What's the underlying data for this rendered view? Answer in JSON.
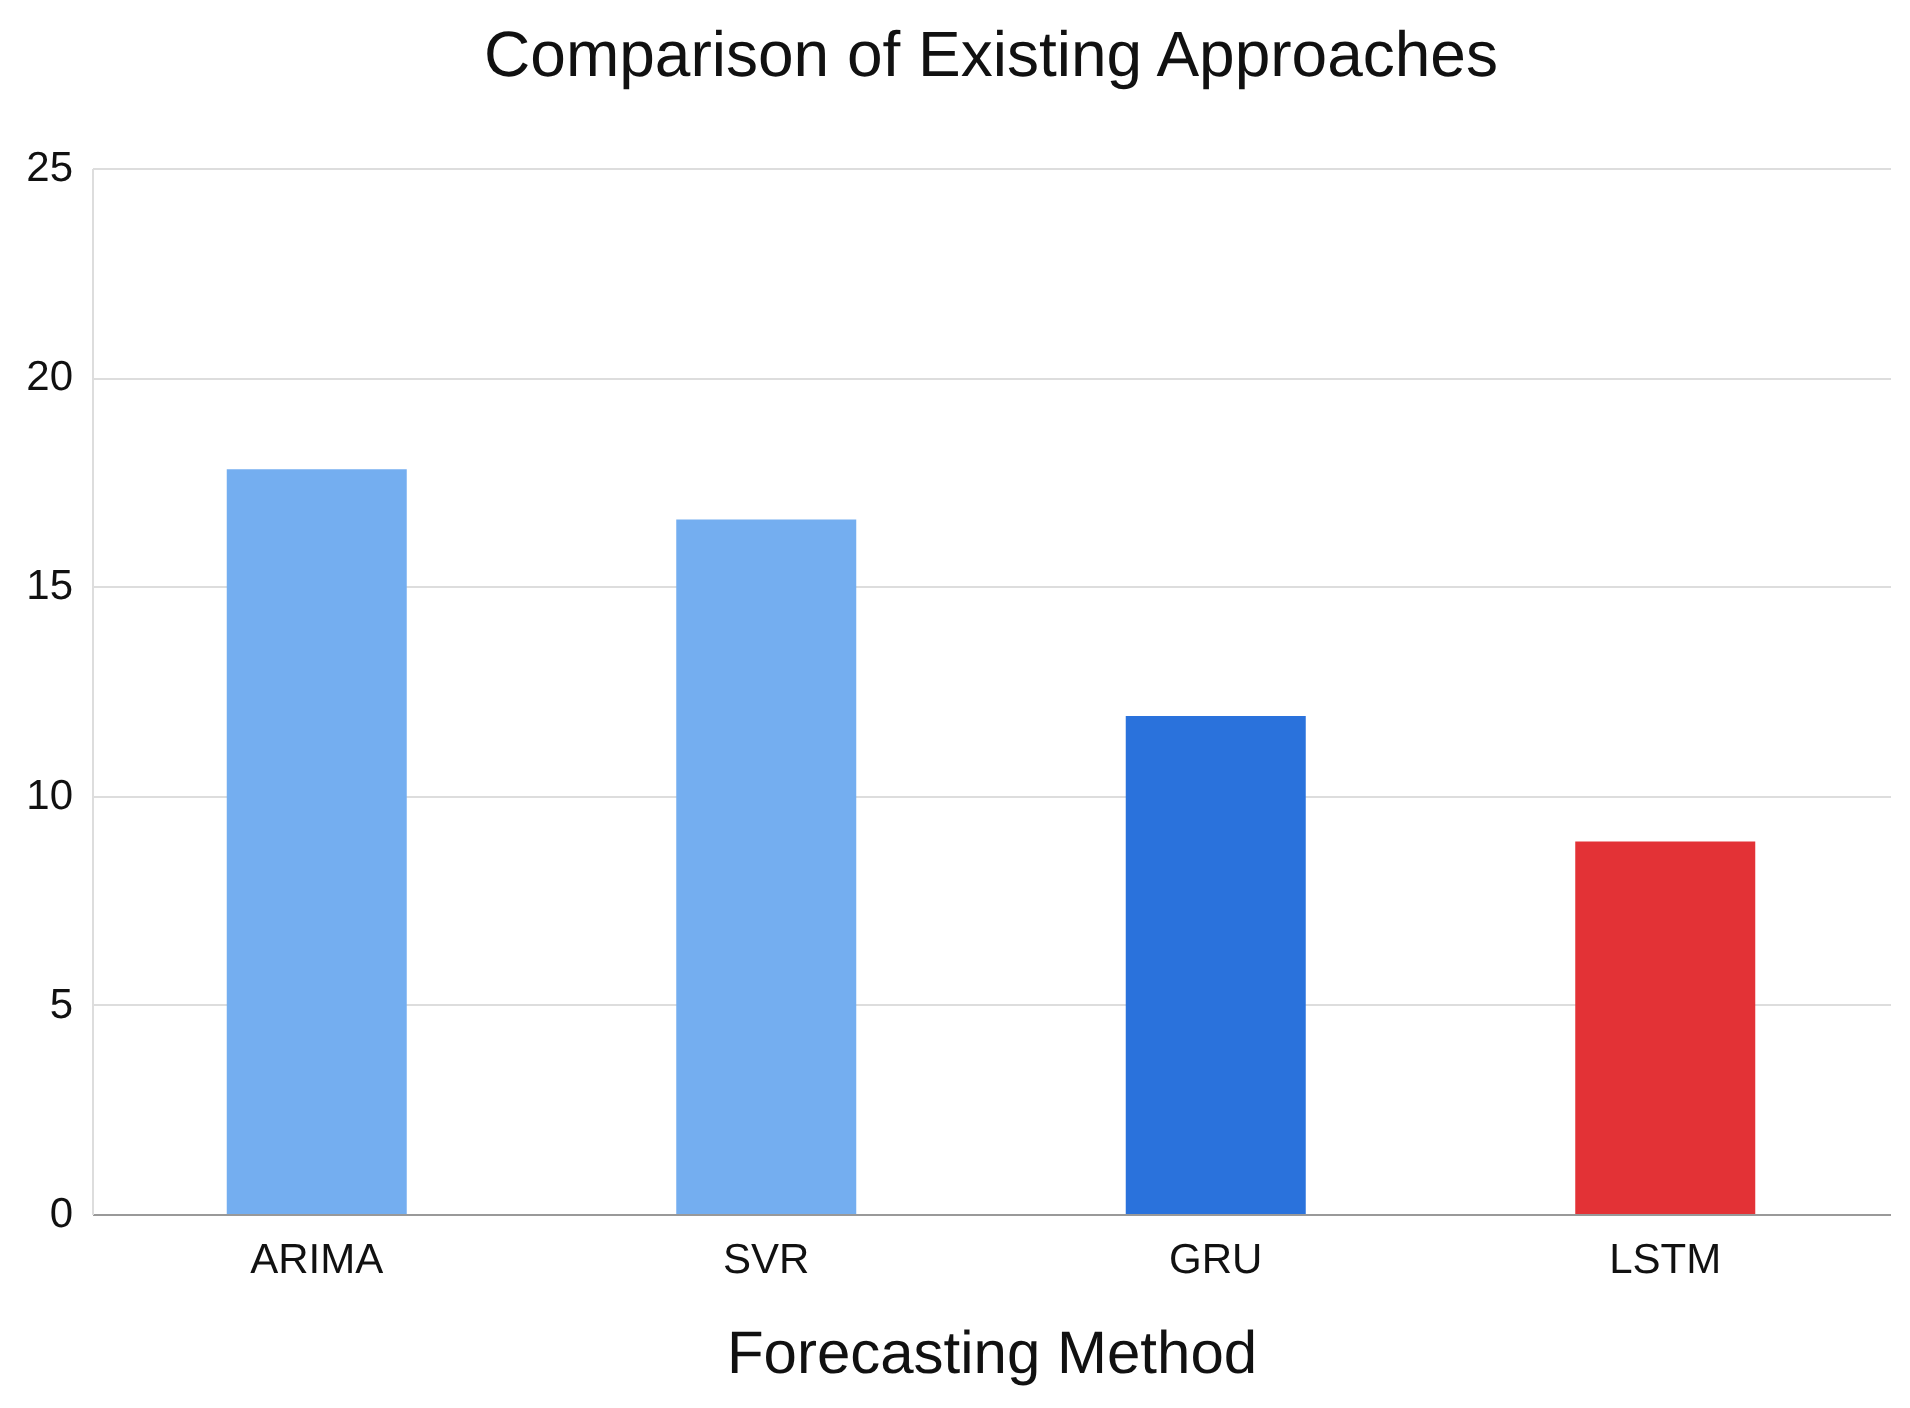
{
  "chart_data": {
    "type": "bar",
    "title": "Comparison of Existing Approaches",
    "xlabel": "Forecasting Method",
    "categories": [
      "ARIMA",
      "SVR",
      "GRU",
      "LSTM"
    ],
    "values": [
      17.8,
      16.6,
      11.9,
      8.9
    ],
    "colors": [
      "#74aef0",
      "#74aef0",
      "#2a72dc",
      "#e33236"
    ],
    "ylim": [
      0,
      25
    ],
    "yticks": [
      0,
      5,
      10,
      15,
      20,
      25
    ],
    "grid": "y",
    "legend": false
  }
}
